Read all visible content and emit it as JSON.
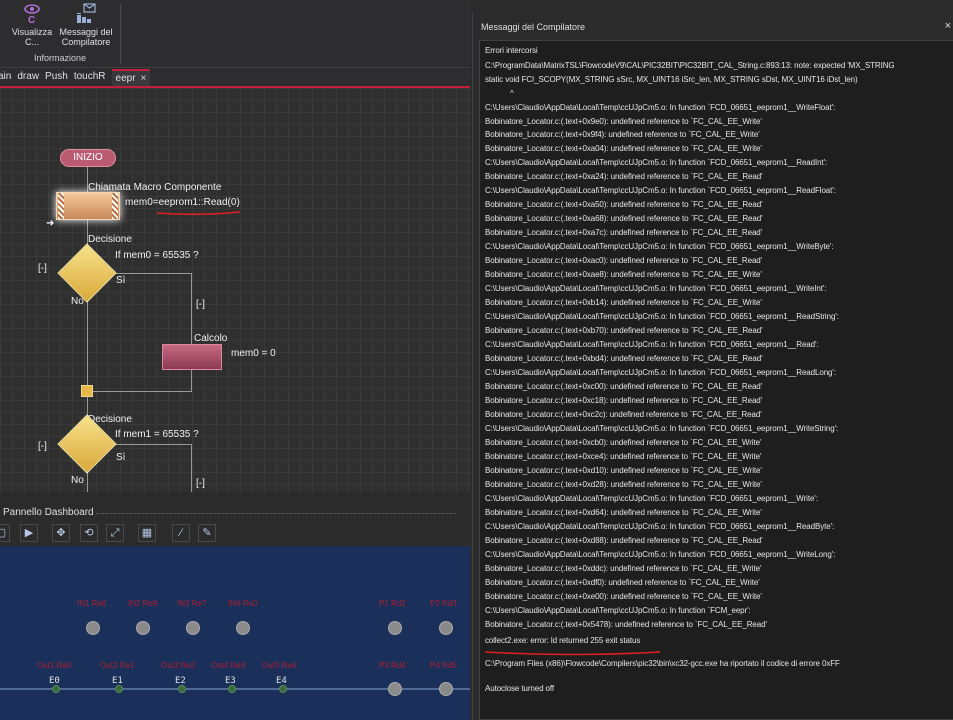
{
  "ribbon": {
    "buttons": [
      {
        "label": "Visualizza C...",
        "line1": "Visualizza",
        "line2": "C...",
        "icon": "eye-c-icon"
      },
      {
        "label": "Messaggi del Compilatore",
        "line1": "Messaggi del",
        "line2": "Compilatore",
        "icon": "compiler-messages-icon"
      }
    ],
    "group_label": "Informazione"
  },
  "tabs": [
    {
      "label": "ain",
      "active": false
    },
    {
      "label": "draw",
      "active": false
    },
    {
      "label": "Push",
      "active": false
    },
    {
      "label": "touchR",
      "active": false
    },
    {
      "label": "eepr",
      "active": true,
      "close": "×"
    }
  ],
  "flowchart": {
    "start": "INIZIO",
    "macro_title": "Chiamata Macro Componente",
    "macro_code": "mem0=eeprom1::Read(0)",
    "decision1_title": "Decisione",
    "decision1_cond": "If mem0 = 65535 ?",
    "decision1_yes": "Sì",
    "decision1_no": "No",
    "collapse": "[-]",
    "calc_title": "Calcolo",
    "calc_code": "mem0 = 0",
    "decision2_title": "Decisione",
    "decision2_cond": "If mem1 = 65535 ?",
    "decision2_yes": "Sì",
    "decision2_no": "No"
  },
  "dashboard": {
    "title": "Pannello Dashboard",
    "toolbar_icons": [
      "pointer-icon",
      "move-icon",
      "rotate-icon",
      "resize-icon",
      "group-icon",
      "wand-icon",
      "brush-icon"
    ],
    "inputs": [
      {
        "label": "IN1 Re6"
      },
      {
        "label": "IN2 Re9"
      },
      {
        "label": "IN3 Re7"
      },
      {
        "label": "IN4 Ru0"
      },
      {
        "label": "P1 Rd2"
      },
      {
        "label": "P2 Rd3"
      }
    ],
    "outputs": [
      {
        "label": "Out1 Re0",
        "led": "E0"
      },
      {
        "label": "Out2 Re1",
        "led": "E1"
      },
      {
        "label": "Out3 Re2",
        "led": "E2"
      },
      {
        "label": "Out4 Re3",
        "led": "E3"
      },
      {
        "label": "Out5 Re4",
        "led": "E4"
      },
      {
        "label": "P3 Rd4"
      },
      {
        "label": "P4 Rd5"
      }
    ]
  },
  "compiler": {
    "title": "Messaggi del Compilatore",
    "close": "×",
    "lines": [
      "Errori intercorsi",
      "C:\\ProgramData\\MatrixTSL\\FlowcodeV9\\CAL\\PIC32BIT\\PIC32BIT_CAL_String.c:893:13: note: expected 'MX_STRING",
      " static void FCI_SCOPY(MX_STRING sSrc, MX_UINT16 iSrc_len, MX_STRING sDst, MX_UINT16 iDst_len)",
      "^",
      "",
      "C:\\Users\\Claudio\\AppData\\Local\\Temp\\ccUJpCm5.o: In function `FCD_06651_eeprom1__WriteFloat':",
      "Bobinatore_Locator.c:(.text+0x9e0): undefined reference to `FC_CAL_EE_Write'",
      "Bobinatore_Locator.c:(.text+0x9f4): undefined reference to `FC_CAL_EE_Write'",
      "Bobinatore_Locator.c:(.text+0xa04): undefined reference to `FC_CAL_EE_Write'",
      "C:\\Users\\Claudio\\AppData\\Local\\Temp\\ccUJpCm5.o: In function `FCD_06651_eeprom1__ReadInt':",
      "Bobinatore_Locator.c:(.text+0xa24): undefined reference to `FC_CAL_EE_Read'",
      "C:\\Users\\Claudio\\AppData\\Local\\Temp\\ccUJpCm5.o: In function `FCD_06651_eeprom1__ReadFloat':",
      "Bobinatore_Locator.c:(.text+0xa50): undefined reference to `FC_CAL_EE_Read'",
      "Bobinatore_Locator.c:(.text+0xa68): undefined reference to `FC_CAL_EE_Read'",
      "Bobinatore_Locator.c:(.text+0xa7c): undefined reference to `FC_CAL_EE_Read'",
      "C:\\Users\\Claudio\\AppData\\Local\\Temp\\ccUJpCm5.o: In function `FCD_06651_eeprom1__WriteByte':",
      "Bobinatore_Locator.c:(.text+0xac0): undefined reference to `FC_CAL_EE_Read'",
      "Bobinatore_Locator.c:(.text+0xae8): undefined reference to `FC_CAL_EE_Write'",
      "C:\\Users\\Claudio\\AppData\\Local\\Temp\\ccUJpCm5.o: In function `FCD_06651_eeprom1__WriteInt':",
      "Bobinatore_Locator.c:(.text+0xb14): undefined reference to `FC_CAL_EE_Write'",
      "C:\\Users\\Claudio\\AppData\\Local\\Temp\\ccUJpCm5.o: In function `FCD_06651_eeprom1__ReadString':",
      "Bobinatore_Locator.c:(.text+0xb70): undefined reference to `FC_CAL_EE_Read'",
      "C:\\Users\\Claudio\\AppData\\Local\\Temp\\ccUJpCm5.o: In function `FCD_06651_eeprom1__Read':",
      "Bobinatore_Locator.c:(.text+0xbd4): undefined reference to `FC_CAL_EE_Read'",
      "C:\\Users\\Claudio\\AppData\\Local\\Temp\\ccUJpCm5.o: In function `FCD_06651_eeprom1__ReadLong':",
      "Bobinatore_Locator.c:(.text+0xc00): undefined reference to `FC_CAL_EE_Read'",
      "Bobinatore_Locator.c:(.text+0xc18): undefined reference to `FC_CAL_EE_Read'",
      "Bobinatore_Locator.c:(.text+0xc2c): undefined reference to `FC_CAL_EE_Read'",
      "C:\\Users\\Claudio\\AppData\\Local\\Temp\\ccUJpCm5.o: In function `FCD_06651_eeprom1__WriteString':",
      "Bobinatore_Locator.c:(.text+0xcb0): undefined reference to `FC_CAL_EE_Write'",
      "Bobinatore_Locator.c:(.text+0xce4): undefined reference to `FC_CAL_EE_Write'",
      "Bobinatore_Locator.c:(.text+0xd10): undefined reference to `FC_CAL_EE_Write'",
      "Bobinatore_Locator.c:(.text+0xd28): undefined reference to `FC_CAL_EE_Write'",
      "C:\\Users\\Claudio\\AppData\\Local\\Temp\\ccUJpCm5.o: In function `FCD_06651_eeprom1__Write':",
      "Bobinatore_Locator.c:(.text+0xd64): undefined reference to `FC_CAL_EE_Write'",
      "C:\\Users\\Claudio\\AppData\\Local\\Temp\\ccUJpCm5.o: In function `FCD_06651_eeprom1__ReadByte':",
      "Bobinatore_Locator.c:(.text+0xd88): undefined reference to `FC_CAL_EE_Read'",
      "C:\\Users\\Claudio\\AppData\\Local\\Temp\\ccUJpCm5.o: In function `FCD_06651_eeprom1__WriteLong':",
      "Bobinatore_Locator.c:(.text+0xddc): undefined reference to `FC_CAL_EE_Write'",
      "Bobinatore_Locator.c:(.text+0xdf0): undefined reference to `FC_CAL_EE_Write'",
      "Bobinatore_Locator.c:(.text+0xe00): undefined reference to `FC_CAL_EE_Write'",
      "C:\\Users\\Claudio\\AppData\\Local\\Temp\\ccUJpCm5.o: In function `FCM_eepr':",
      "Bobinatore_Locator.c:(.text+0x5478): undefined reference to `FC_CAL_EE_Read'",
      "collect2.exe: error: ld returned 255 exit status",
      "",
      "C:\\Program Files (x86)\\Flowcode\\Compilers\\pic32\\bin\\xc32-gcc.exe ha riportato il codice di errore 0xFF",
      "",
      "Autoclose turned off"
    ]
  },
  "colors": {
    "accent_red": "#c41e3a",
    "dashboard_bg": "#1a2f5a",
    "decision_yellow": "#f0cc60",
    "calc_pink": "#b05070",
    "macro_orange": "#e8b080"
  }
}
